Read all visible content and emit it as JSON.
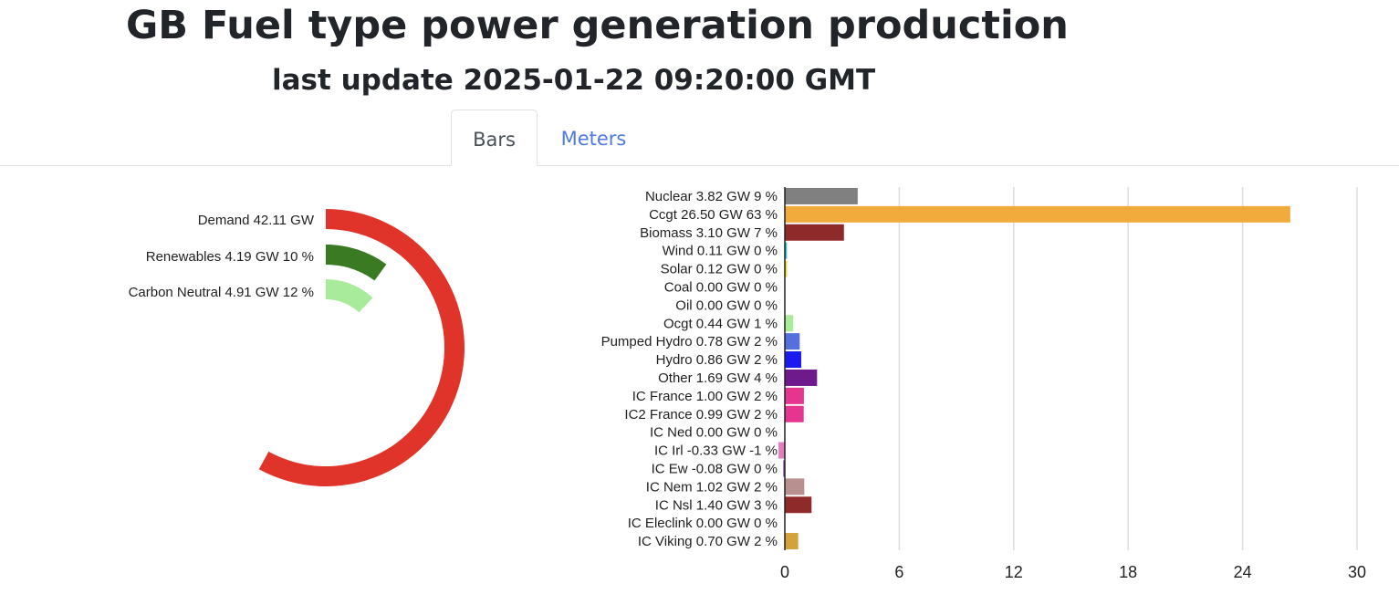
{
  "header": {
    "title": "GB Fuel type power generation production",
    "subtitle": "last update 2025-01-22 09:20:00 GMT"
  },
  "tabs": [
    {
      "label": "Bars",
      "active": true
    },
    {
      "label": "Meters",
      "active": false
    }
  ],
  "colors": {
    "tab_link": "#4e79e6",
    "active_tab_text": "#495057"
  },
  "gauge": {
    "items": [
      {
        "label": "Demand 42.11 GW",
        "value_gw": 42.11,
        "fraction": 0.58,
        "color": "#e0342a"
      },
      {
        "label": "Renewables 4.19 GW 10 %",
        "value_gw": 4.19,
        "percent": 10,
        "color": "#3a7a22"
      },
      {
        "label": "Carbon Neutral 4.91 GW 12 %",
        "value_gw": 4.91,
        "percent": 12,
        "color": "#a8eb9a"
      }
    ]
  },
  "chart_data": {
    "type": "bar",
    "orientation": "horizontal",
    "xlim": [
      0,
      30
    ],
    "xticks": [
      0,
      6,
      12,
      18,
      24,
      30
    ],
    "grid": true,
    "bars": [
      {
        "label": "Nuclear 3.82 GW 9 %",
        "value": 3.82,
        "color": "#808080"
      },
      {
        "label": "Ccgt 26.50 GW 63 %",
        "value": 26.5,
        "color": "#f0ab3c"
      },
      {
        "label": "Biomass 3.10 GW 7 %",
        "value": 3.1,
        "color": "#8f2a2a"
      },
      {
        "label": "Wind 0.11 GW 0 %",
        "value": 0.11,
        "color": "#29c6d6"
      },
      {
        "label": "Solar 0.12 GW 0 %",
        "value": 0.12,
        "color": "#f2e22c"
      },
      {
        "label": "Coal 0.00 GW 0 %",
        "value": 0.0,
        "color": "#333333"
      },
      {
        "label": "Oil 0.00 GW 0 %",
        "value": 0.0,
        "color": "#555555"
      },
      {
        "label": "Ocgt 0.44 GW 1 %",
        "value": 0.44,
        "color": "#a8eb9a"
      },
      {
        "label": "Pumped Hydro 0.78 GW 2 %",
        "value": 0.78,
        "color": "#5570dd"
      },
      {
        "label": "Hydro 0.86 GW 2 %",
        "value": 0.86,
        "color": "#1a1aef"
      },
      {
        "label": "Other 1.69 GW 4 %",
        "value": 1.69,
        "color": "#6e1a8c"
      },
      {
        "label": "IC France 1.00 GW 2 %",
        "value": 1.0,
        "color": "#e6358f"
      },
      {
        "label": "IC2 France 0.99 GW 2 %",
        "value": 0.99,
        "color": "#e6358f"
      },
      {
        "label": "IC Ned 0.00 GW 0 %",
        "value": 0.0,
        "color": "#f28b3c"
      },
      {
        "label": "IC Irl -0.33 GW -1 %",
        "value": -0.33,
        "color": "#e67bc0"
      },
      {
        "label": "IC Ew -0.08 GW 0 %",
        "value": -0.08,
        "color": "#7a3aa8"
      },
      {
        "label": "IC Nem 1.02 GW 2 %",
        "value": 1.02,
        "color": "#b89090"
      },
      {
        "label": "IC Nsl 1.40 GW 3 %",
        "value": 1.4,
        "color": "#8f2a2a"
      },
      {
        "label": "IC Eleclink 0.00 GW 0 %",
        "value": 0.0,
        "color": "#888888"
      },
      {
        "label": "IC Viking 0.70 GW 2 %",
        "value": 0.7,
        "color": "#d4a23a"
      }
    ]
  }
}
